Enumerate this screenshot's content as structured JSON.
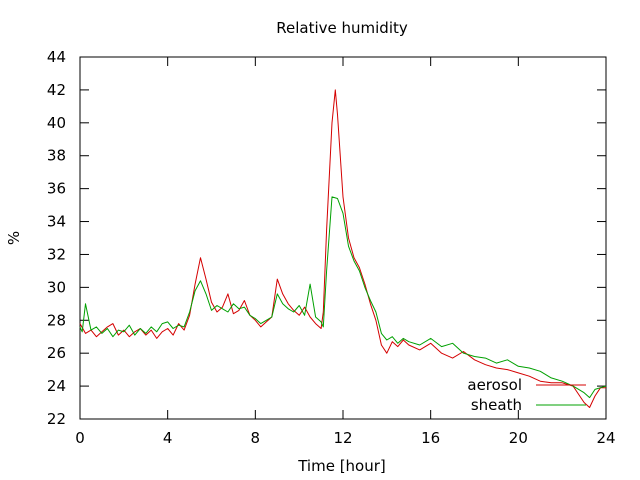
{
  "chart_data": {
    "type": "line",
    "title": "Relative humidity",
    "xlabel": "Time [hour]",
    "ylabel": "%",
    "xlim": [
      0,
      24
    ],
    "ylim": [
      22,
      44
    ],
    "xticks": [
      0,
      4,
      8,
      12,
      16,
      20,
      24
    ],
    "yticks": [
      22,
      24,
      26,
      28,
      30,
      32,
      34,
      36,
      38,
      40,
      42,
      44
    ],
    "grid": false,
    "legend_position": "bottom-right",
    "series": [
      {
        "name": "aerosol",
        "color": "#d40000",
        "x": [
          0,
          0.25,
          0.5,
          0.75,
          1,
          1.25,
          1.5,
          1.75,
          2,
          2.25,
          2.5,
          2.75,
          3,
          3.25,
          3.5,
          3.75,
          4,
          4.25,
          4.5,
          4.75,
          5,
          5.25,
          5.5,
          5.75,
          6,
          6.25,
          6.5,
          6.75,
          7,
          7.25,
          7.5,
          7.75,
          8,
          8.25,
          8.5,
          8.75,
          9,
          9.25,
          9.5,
          9.75,
          10,
          10.25,
          10.5,
          10.75,
          11,
          11.1,
          11.25,
          11.5,
          11.65,
          11.75,
          12,
          12.25,
          12.5,
          12.75,
          13,
          13.25,
          13.5,
          13.75,
          14,
          14.25,
          14.5,
          14.75,
          15,
          15.5,
          16,
          16.5,
          17,
          17.5,
          18,
          18.5,
          19,
          19.5,
          20,
          20.5,
          21,
          21.5,
          22,
          22.5,
          23,
          23.25,
          23.5,
          23.75,
          24
        ],
        "values": [
          27.8,
          27.2,
          27.4,
          27.0,
          27.3,
          27.6,
          27.8,
          27.1,
          27.4,
          27.0,
          27.3,
          27.5,
          27.1,
          27.4,
          26.9,
          27.3,
          27.5,
          27.1,
          27.8,
          27.4,
          28.3,
          30.2,
          31.8,
          30.5,
          29.1,
          28.5,
          28.8,
          29.6,
          28.4,
          28.6,
          29.2,
          28.3,
          28.0,
          27.6,
          27.9,
          28.2,
          30.5,
          29.6,
          29.0,
          28.6,
          28.3,
          28.8,
          28.2,
          27.8,
          27.5,
          28.5,
          33.5,
          40.0,
          42.0,
          40.5,
          35.5,
          33.0,
          31.8,
          31.2,
          30.2,
          29.0,
          28.0,
          26.5,
          26.0,
          26.7,
          26.4,
          26.8,
          26.5,
          26.2,
          26.6,
          26.0,
          25.7,
          26.1,
          25.6,
          25.3,
          25.1,
          25.0,
          24.8,
          24.6,
          24.3,
          24.2,
          24.2,
          24.0,
          23.0,
          22.7,
          23.4,
          23.9,
          23.9
        ]
      },
      {
        "name": "sheath",
        "color": "#00a000",
        "x": [
          0,
          0.1,
          0.25,
          0.5,
          0.75,
          1,
          1.25,
          1.5,
          1.75,
          2,
          2.25,
          2.5,
          2.75,
          3,
          3.25,
          3.5,
          3.75,
          4,
          4.25,
          4.5,
          4.75,
          5,
          5.25,
          5.5,
          5.75,
          6,
          6.25,
          6.5,
          6.75,
          7,
          7.25,
          7.5,
          7.75,
          8,
          8.25,
          8.5,
          8.75,
          9,
          9.25,
          9.5,
          9.75,
          10,
          10.25,
          10.5,
          10.75,
          11,
          11.1,
          11.25,
          11.5,
          11.75,
          12,
          12.25,
          12.5,
          12.75,
          13,
          13.25,
          13.5,
          13.75,
          14,
          14.25,
          14.5,
          14.75,
          15,
          15.5,
          16,
          16.5,
          17,
          17.5,
          18,
          18.5,
          19,
          19.5,
          20,
          20.5,
          21,
          21.5,
          22,
          22.5,
          23,
          23.25,
          23.5,
          23.75,
          24
        ],
        "values": [
          27.6,
          27.3,
          29.0,
          27.4,
          27.6,
          27.2,
          27.5,
          27.0,
          27.4,
          27.3,
          27.7,
          27.1,
          27.5,
          27.2,
          27.6,
          27.3,
          27.8,
          27.9,
          27.5,
          27.7,
          27.6,
          28.5,
          29.8,
          30.4,
          29.6,
          28.6,
          28.9,
          28.7,
          28.5,
          29.0,
          28.7,
          28.8,
          28.3,
          28.1,
          27.8,
          28.0,
          28.2,
          29.6,
          29.0,
          28.7,
          28.5,
          28.9,
          28.3,
          30.2,
          28.2,
          27.9,
          27.6,
          31.0,
          35.5,
          35.4,
          34.5,
          32.5,
          31.6,
          31.0,
          30.0,
          29.2,
          28.5,
          27.2,
          26.8,
          27.0,
          26.6,
          26.9,
          26.7,
          26.5,
          26.9,
          26.4,
          26.6,
          26.0,
          25.8,
          25.7,
          25.4,
          25.6,
          25.2,
          25.1,
          24.9,
          24.5,
          24.3,
          24.0,
          23.6,
          23.3,
          23.8,
          23.9,
          24.0
        ]
      }
    ]
  }
}
